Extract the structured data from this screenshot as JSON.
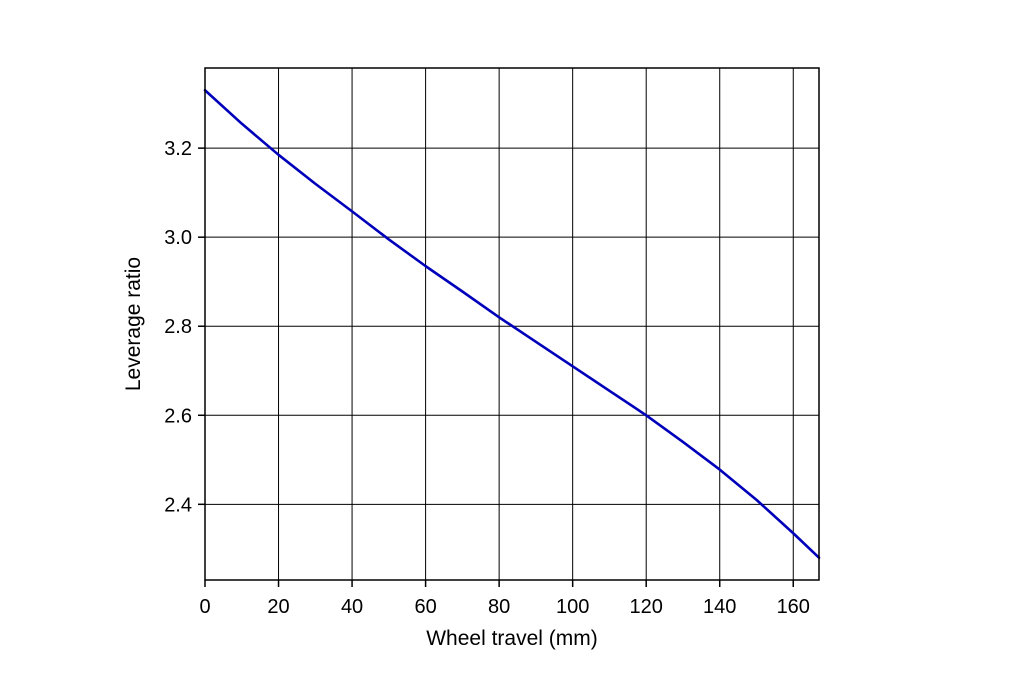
{
  "chart_data": {
    "type": "line",
    "title": "",
    "xlabel": "Wheel travel (mm)",
    "ylabel": "Leverage ratio",
    "xlim": [
      0,
      167
    ],
    "ylim": [
      2.23,
      3.38
    ],
    "xticks": [
      0,
      20,
      40,
      60,
      80,
      100,
      120,
      140,
      160
    ],
    "yticks": [
      2.4,
      2.6,
      2.8,
      3.0,
      3.2
    ],
    "xtick_labels": [
      "0",
      "20",
      "40",
      "60",
      "80",
      "100",
      "120",
      "140",
      "160"
    ],
    "ytick_labels": [
      "2.4",
      "2.6",
      "2.8",
      "3.0",
      "3.2"
    ],
    "grid": true,
    "legend": "none",
    "line_color": "#0000bb",
    "series": [
      {
        "x": [
          0,
          10,
          20,
          30,
          40,
          50,
          60,
          70,
          80,
          90,
          100,
          110,
          120,
          130,
          140,
          150,
          160,
          167
        ],
        "y": [
          3.33,
          3.255,
          3.185,
          3.12,
          3.058,
          2.995,
          2.935,
          2.878,
          2.82,
          2.765,
          2.71,
          2.655,
          2.6,
          2.54,
          2.478,
          2.41,
          2.335,
          2.28
        ]
      }
    ]
  }
}
